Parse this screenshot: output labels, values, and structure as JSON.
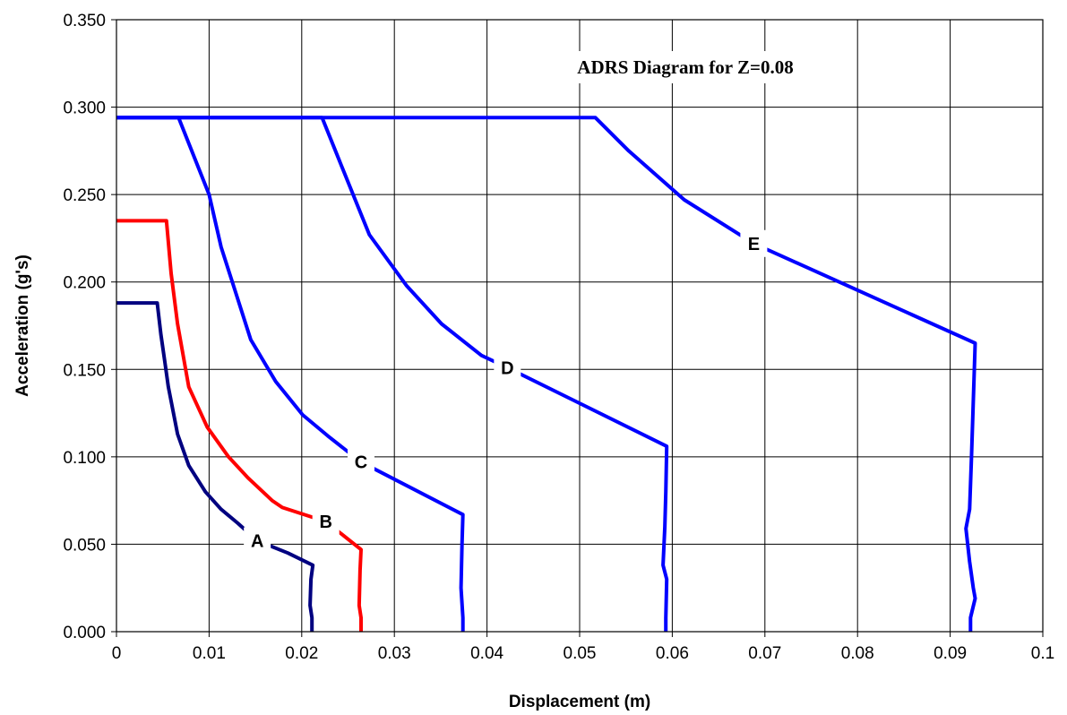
{
  "chart_data": {
    "type": "line",
    "title": "ADRS Diagram for  Z=0.08",
    "xlabel": "Displacement (m)",
    "ylabel": "Acceleration (g's)",
    "xlim": [
      0,
      0.1
    ],
    "ylim": [
      0,
      0.35
    ],
    "x_ticks": [
      "0",
      "0.01",
      "0.02",
      "0.03",
      "0.04",
      "0.05",
      "0.06",
      "0.07",
      "0.08",
      "0.09",
      "0.1"
    ],
    "y_ticks": [
      "0.000",
      "0.050",
      "0.100",
      "0.150",
      "0.200",
      "0.250",
      "0.300",
      "0.350"
    ],
    "grid": true,
    "legend": "none",
    "series": [
      {
        "name": "A",
        "color": "#000080",
        "label_at": [
          0.0152,
          0.052
        ],
        "points": [
          [
            0,
            0.188
          ],
          [
            0.0044,
            0.188
          ],
          [
            0.0048,
            0.17
          ],
          [
            0.0052,
            0.155
          ],
          [
            0.0056,
            0.14
          ],
          [
            0.0066,
            0.113
          ],
          [
            0.0078,
            0.095
          ],
          [
            0.0096,
            0.08
          ],
          [
            0.0113,
            0.07
          ],
          [
            0.0131,
            0.062
          ],
          [
            0.0152,
            0.052
          ],
          [
            0.0185,
            0.045
          ],
          [
            0.0212,
            0.038
          ],
          [
            0.021,
            0.03
          ],
          [
            0.0209,
            0.015
          ],
          [
            0.0211,
            0.008
          ],
          [
            0.0211,
            0
          ]
        ]
      },
      {
        "name": "B",
        "color": "#ff0000",
        "label_at": [
          0.0226,
          0.063
        ],
        "points": [
          [
            0,
            0.235
          ],
          [
            0.0054,
            0.235
          ],
          [
            0.0059,
            0.205
          ],
          [
            0.0066,
            0.176
          ],
          [
            0.0078,
            0.14
          ],
          [
            0.0098,
            0.117
          ],
          [
            0.0121,
            0.1
          ],
          [
            0.0142,
            0.088
          ],
          [
            0.0168,
            0.075
          ],
          [
            0.0179,
            0.071
          ],
          [
            0.0226,
            0.063
          ],
          [
            0.0264,
            0.047
          ],
          [
            0.0263,
            0.035
          ],
          [
            0.0262,
            0.015
          ],
          [
            0.0264,
            0.008
          ],
          [
            0.0264,
            0
          ]
        ]
      },
      {
        "name": "C",
        "color": "#0000ff",
        "label_at": [
          0.0264,
          0.097
        ],
        "points": [
          [
            0,
            0.294
          ],
          [
            0.0067,
            0.294
          ],
          [
            0.01,
            0.25
          ],
          [
            0.0113,
            0.22
          ],
          [
            0.0125,
            0.2
          ],
          [
            0.0145,
            0.167
          ],
          [
            0.0172,
            0.143
          ],
          [
            0.0201,
            0.124
          ],
          [
            0.0228,
            0.112
          ],
          [
            0.0264,
            0.097
          ],
          [
            0.0374,
            0.067
          ],
          [
            0.0373,
            0.05
          ],
          [
            0.0372,
            0.025
          ],
          [
            0.0374,
            0.008
          ],
          [
            0.0374,
            0
          ]
        ]
      },
      {
        "name": "D",
        "color": "#0000ff",
        "label_at": [
          0.0422,
          0.151
        ],
        "points": [
          [
            0,
            0.294
          ],
          [
            0.0222,
            0.294
          ],
          [
            0.0244,
            0.265
          ],
          [
            0.0273,
            0.227
          ],
          [
            0.0313,
            0.198
          ],
          [
            0.0351,
            0.176
          ],
          [
            0.0394,
            0.158
          ],
          [
            0.0422,
            0.151
          ],
          [
            0.0594,
            0.106
          ],
          [
            0.0593,
            0.08
          ],
          [
            0.0592,
            0.06
          ],
          [
            0.059,
            0.038
          ],
          [
            0.0594,
            0.03
          ],
          [
            0.0593,
            0.008
          ],
          [
            0.0593,
            0
          ]
        ]
      },
      {
        "name": "E",
        "color": "#0000ff",
        "label_at": [
          0.0688,
          0.222
        ],
        "points": [
          [
            0,
            0.294
          ],
          [
            0.0517,
            0.294
          ],
          [
            0.0553,
            0.275
          ],
          [
            0.0613,
            0.247
          ],
          [
            0.0688,
            0.222
          ],
          [
            0.0927,
            0.165
          ],
          [
            0.0923,
            0.1
          ],
          [
            0.0921,
            0.07
          ],
          [
            0.0917,
            0.059
          ],
          [
            0.0921,
            0.04
          ],
          [
            0.0925,
            0.025
          ],
          [
            0.0927,
            0.019
          ],
          [
            0.0922,
            0.008
          ],
          [
            0.0922,
            0
          ]
        ]
      }
    ]
  }
}
